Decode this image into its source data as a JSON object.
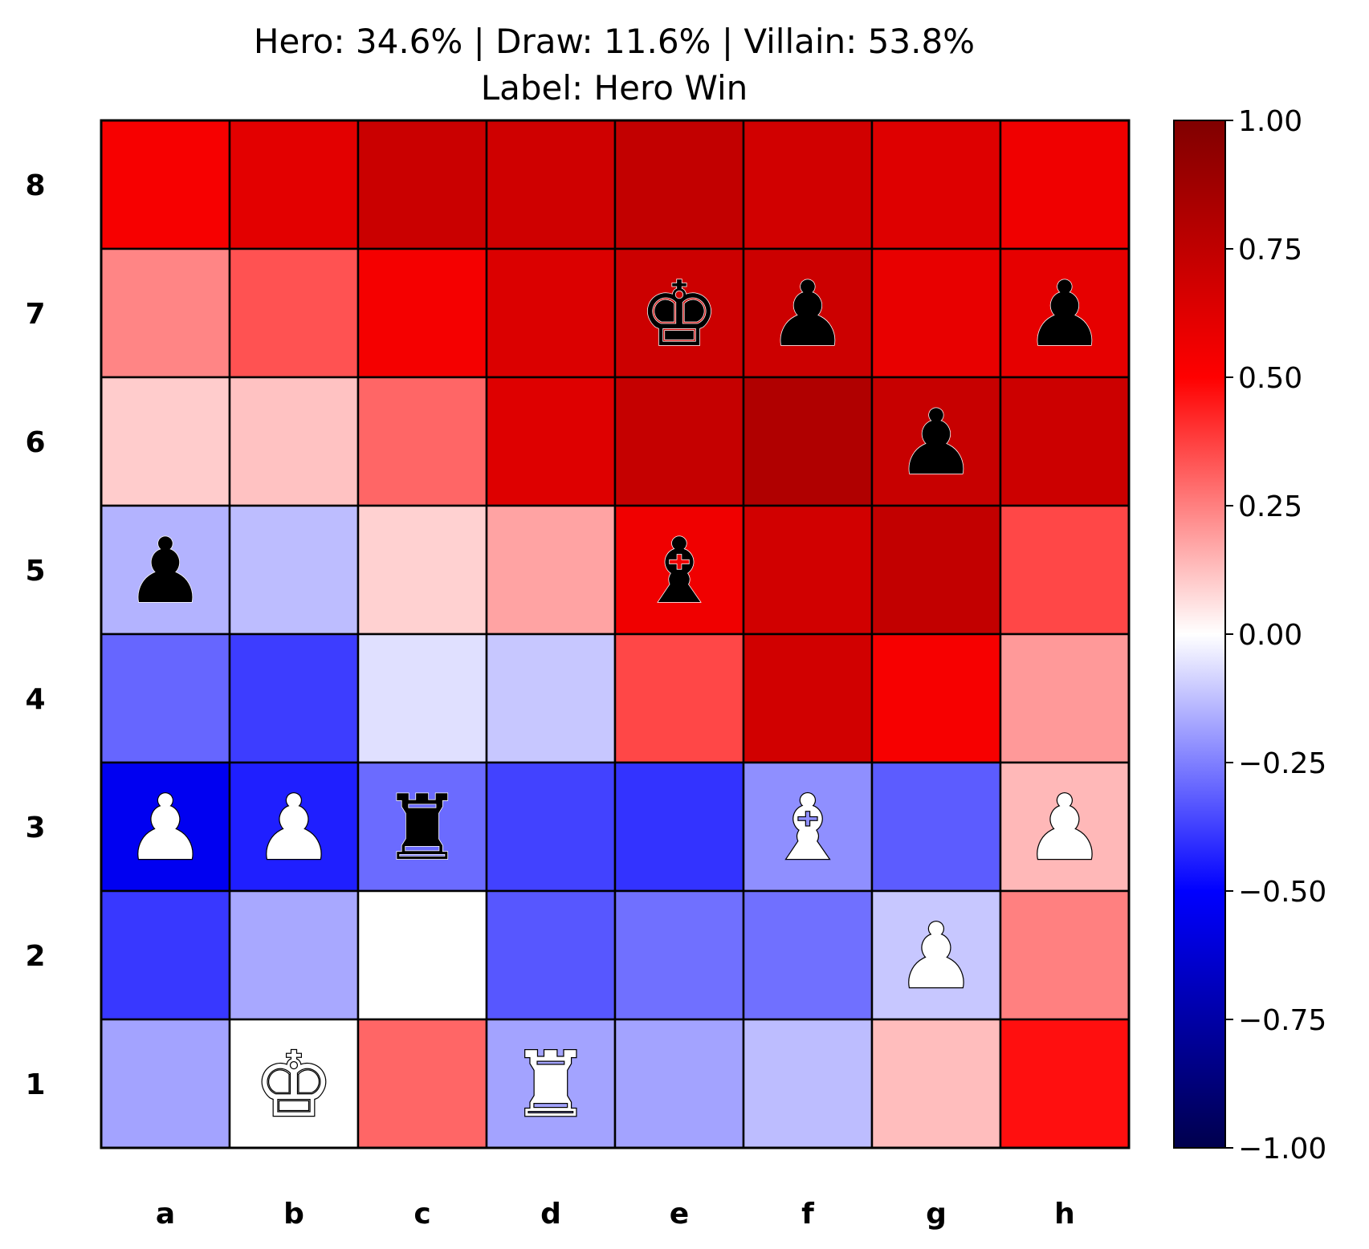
{
  "chart_data": {
    "type": "heatmap",
    "title_line1": "Hero: 34.6% | Draw: 11.6% | Villain: 53.8%",
    "title_line2": "Label: Hero Win",
    "files": [
      "a",
      "b",
      "c",
      "d",
      "e",
      "f",
      "g",
      "h"
    ],
    "ranks": [
      "8",
      "7",
      "6",
      "5",
      "4",
      "3",
      "2",
      "1"
    ],
    "values": [
      [
        0.53,
        0.61,
        0.71,
        0.69,
        0.74,
        0.68,
        0.63,
        0.56
      ],
      [
        0.24,
        0.34,
        0.54,
        0.64,
        0.7,
        0.7,
        0.59,
        0.6
      ],
      [
        0.1,
        0.12,
        0.3,
        0.63,
        0.73,
        0.81,
        0.72,
        0.7
      ],
      [
        -0.15,
        -0.13,
        0.09,
        0.18,
        0.56,
        0.68,
        0.74,
        0.36
      ],
      [
        -0.3,
        -0.38,
        -0.06,
        -0.11,
        0.36,
        0.68,
        0.53,
        0.2
      ],
      [
        -0.54,
        -0.44,
        -0.29,
        -0.37,
        -0.4,
        -0.22,
        -0.32,
        0.14
      ],
      [
        -0.39,
        -0.17,
        0.0,
        -0.33,
        -0.28,
        -0.28,
        -0.11,
        0.25
      ],
      [
        -0.18,
        0.0,
        0.3,
        -0.18,
        -0.18,
        -0.13,
        0.13,
        0.47
      ]
    ],
    "pieces": [
      {
        "square": "e7",
        "symbol": "♚",
        "color": "black"
      },
      {
        "square": "f7",
        "symbol": "♟",
        "color": "black"
      },
      {
        "square": "h7",
        "symbol": "♟",
        "color": "black"
      },
      {
        "square": "g6",
        "symbol": "♟",
        "color": "black"
      },
      {
        "square": "a5",
        "symbol": "♟",
        "color": "black"
      },
      {
        "square": "e5",
        "symbol": "♝",
        "color": "black"
      },
      {
        "square": "c3",
        "symbol": "♜",
        "color": "black"
      },
      {
        "square": "a3",
        "symbol": "♟",
        "color": "white"
      },
      {
        "square": "b3",
        "symbol": "♟",
        "color": "white"
      },
      {
        "square": "f3",
        "symbol": "♝",
        "color": "white"
      },
      {
        "square": "h3",
        "symbol": "♟",
        "color": "white"
      },
      {
        "square": "g2",
        "symbol": "♟",
        "color": "white"
      },
      {
        "square": "b1",
        "symbol": "♚",
        "color": "white"
      },
      {
        "square": "d1",
        "symbol": "♜",
        "color": "white"
      }
    ],
    "colorbar": {
      "range": [
        -1,
        1
      ],
      "ticks": [
        "1.00",
        "0.75",
        "0.50",
        "0.25",
        "0.00",
        "−0.25",
        "−0.50",
        "−0.75",
        "−1.00"
      ],
      "tick_values": [
        1,
        0.75,
        0.5,
        0.25,
        0,
        -0.25,
        -0.5,
        -0.75,
        -1
      ],
      "colormap": "seismic"
    }
  }
}
